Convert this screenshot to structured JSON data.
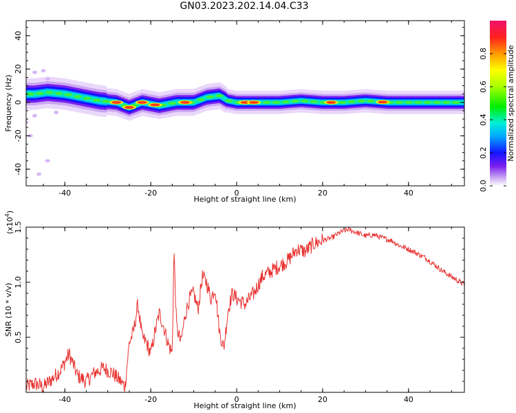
{
  "title": "GN03.2023.202.14.04.C33",
  "colors": {
    "snr_line": "#e8312f",
    "axis": "#000000",
    "background": "#ffffff"
  },
  "chart_data": [
    {
      "type": "heatmap",
      "xlabel": "Height of straight line (km)",
      "ylabel": "Frequency (Hz)",
      "xlim": [
        -49,
        53
      ],
      "ylim": [
        -50,
        49
      ],
      "xticks": [
        -40,
        -20,
        0,
        20,
        40
      ],
      "yticks": [
        -40,
        -20,
        0,
        20,
        40
      ],
      "colorbar": {
        "label": "Normalized spectral amplitude",
        "range": [
          0.0,
          1.0
        ],
        "ticks": [
          "0.0",
          "0.2",
          "0.4",
          "0.6",
          "0.8"
        ],
        "colormap": "rainbow"
      },
      "ridge": {
        "x": [
          -47,
          -44,
          -40,
          -36,
          -32,
          -28,
          -25,
          -22,
          -18,
          -14,
          -10,
          -7,
          -4,
          -2,
          0,
          5,
          10,
          15,
          20,
          25,
          30,
          35,
          40,
          45,
          50,
          53
        ],
        "y": [
          5,
          6,
          5,
          3,
          1,
          0,
          -3,
          0,
          -2,
          0,
          0,
          3,
          4,
          1,
          0,
          0,
          0,
          1,
          0,
          0,
          1,
          0,
          0,
          0,
          0,
          0
        ]
      },
      "hot_spots_x": [
        -28,
        -25,
        -22,
        -19,
        -12,
        2,
        4,
        22,
        34
      ]
    },
    {
      "type": "line",
      "xlabel": "Height of straight line (km)",
      "ylabel": "SNR (10 * v/v)",
      "scale_label": "(x10",
      "scale_exponent": "4",
      "scale_suffix": ")",
      "xlim": [
        -49,
        53
      ],
      "ylim": [
        0.0,
        1.5
      ],
      "xticks": [
        -40,
        -20,
        0,
        20,
        40
      ],
      "yticks": [
        0.5,
        1.0,
        1.5
      ],
      "series": [
        {
          "x": [
            -49,
            -47,
            -45,
            -43,
            -41,
            -39,
            -37,
            -35,
            -33,
            -31,
            -29,
            -27,
            -26,
            -25,
            -24,
            -23,
            -22,
            -21,
            -20,
            -19,
            -18,
            -17,
            -16,
            -15,
            -14.6,
            -14,
            -13,
            -12,
            -11,
            -10,
            -9,
            -8,
            -7,
            -6,
            -5,
            -4,
            -3,
            -2,
            -1,
            0,
            2,
            4,
            6,
            8,
            10,
            12,
            14,
            16,
            18,
            20,
            22,
            24,
            26,
            28,
            30,
            32,
            34,
            36,
            38,
            40,
            42,
            44,
            46,
            48,
            50,
            52,
            53
          ],
          "y": [
            0.05,
            0.08,
            0.05,
            0.12,
            0.2,
            0.35,
            0.15,
            0.1,
            0.18,
            0.22,
            0.18,
            0.1,
            0.05,
            0.45,
            0.55,
            0.8,
            0.5,
            0.45,
            0.35,
            0.55,
            0.72,
            0.6,
            0.45,
            0.35,
            1.3,
            0.6,
            0.45,
            0.7,
            0.85,
            0.9,
            0.75,
            1.05,
            1.0,
            0.85,
            0.95,
            0.55,
            0.4,
            0.75,
            0.9,
            0.85,
            0.8,
            0.9,
            1.05,
            1.1,
            1.15,
            1.2,
            1.3,
            1.28,
            1.35,
            1.38,
            1.4,
            1.45,
            1.48,
            1.45,
            1.42,
            1.43,
            1.4,
            1.38,
            1.33,
            1.3,
            1.26,
            1.22,
            1.16,
            1.1,
            1.05,
            1.0,
            0.98
          ]
        }
      ]
    }
  ]
}
